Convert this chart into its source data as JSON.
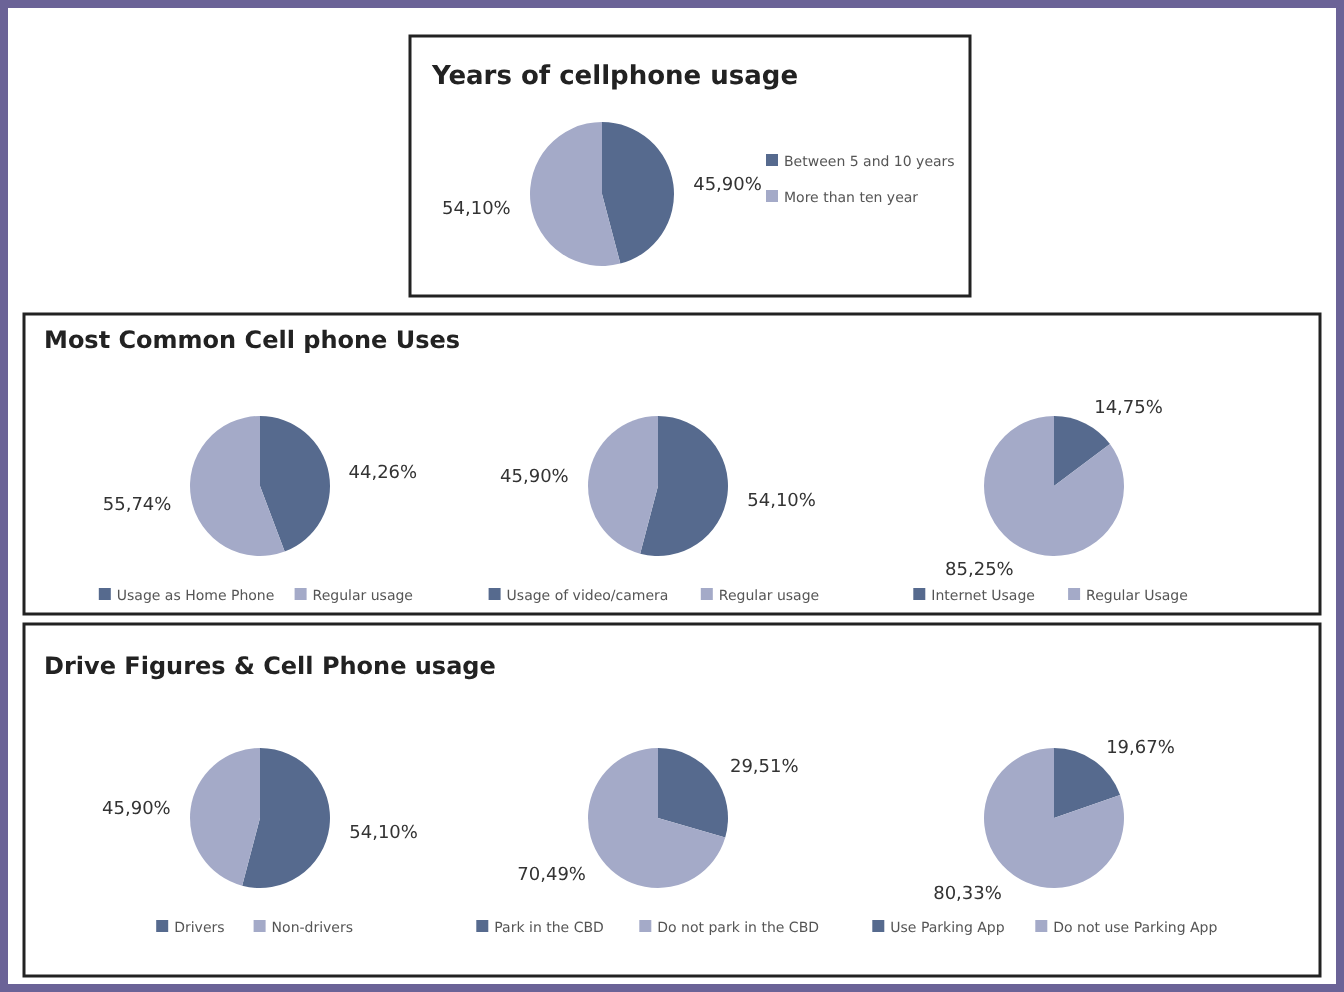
{
  "chart_data": [
    {
      "type": "pie",
      "title": "Years of cellphone usage",
      "categories": [
        "Between 5 and 10 years",
        "More than ten year"
      ],
      "values": [
        45.9,
        54.1
      ],
      "colors": [
        "#566a8e",
        "#a4aac8"
      ],
      "value_labels": [
        "45,90%",
        "54,10%"
      ],
      "legend": "right"
    },
    {
      "type": "pie",
      "title": "Most Common Cell phone Uses",
      "categories": [
        "Usage as Home Phone",
        "Regular usage"
      ],
      "values": [
        44.26,
        55.74
      ],
      "colors": [
        "#566a8e",
        "#a4aac8"
      ],
      "value_labels": [
        "44,26%",
        "55,74%"
      ],
      "legend": "bottom"
    },
    {
      "type": "pie",
      "categories": [
        "Usage of video/camera",
        "Regular usage"
      ],
      "values": [
        54.1,
        45.9
      ],
      "colors": [
        "#566a8e",
        "#a4aac8"
      ],
      "value_labels": [
        "54,10%",
        "45,90%"
      ],
      "legend": "bottom"
    },
    {
      "type": "pie",
      "categories": [
        "Internet Usage",
        "Regular Usage"
      ],
      "values": [
        14.75,
        85.25
      ],
      "colors": [
        "#566a8e",
        "#a4aac8"
      ],
      "value_labels": [
        "14,75%",
        "85,25%"
      ],
      "legend": "bottom"
    },
    {
      "type": "pie",
      "title": "Drive Figures & Cell Phone usage",
      "categories": [
        "Drivers",
        "Non-drivers"
      ],
      "values": [
        54.1,
        45.9
      ],
      "colors": [
        "#566a8e",
        "#a4aac8"
      ],
      "value_labels": [
        "54,10%",
        "45,90%"
      ],
      "legend": "bottom"
    },
    {
      "type": "pie",
      "categories": [
        "Park in the CBD",
        "Do not park in the CBD"
      ],
      "values": [
        29.51,
        70.49
      ],
      "colors": [
        "#566a8e",
        "#a4aac8"
      ],
      "value_labels": [
        "29,51%",
        "70,49%"
      ],
      "legend": "bottom"
    },
    {
      "type": "pie",
      "categories": [
        "Use Parking App",
        "Do not use Parking App"
      ],
      "values": [
        19.67,
        80.33
      ],
      "colors": [
        "#566a8e",
        "#a4aac8"
      ],
      "value_labels": [
        "19,67%",
        "80,33%"
      ],
      "legend": "bottom"
    }
  ]
}
